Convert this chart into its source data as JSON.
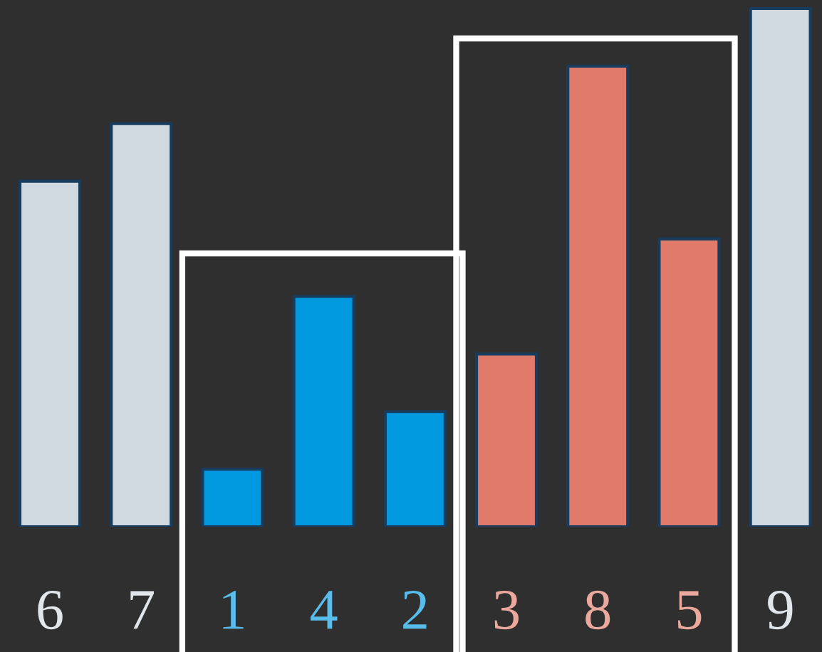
{
  "chart_data": {
    "type": "bar",
    "categories": [
      null,
      null,
      null,
      null,
      null,
      null,
      null,
      null,
      null
    ],
    "values": [
      6,
      7,
      1,
      4,
      2,
      3,
      8,
      5,
      9
    ],
    "colors": [
      "#d0d8e0",
      "#d0d8e0",
      "#0099e0",
      "#0099e0",
      "#0099e0",
      "#e07a6a",
      "#e07a6a",
      "#e07a6a",
      "#d0d8e0"
    ],
    "data_labels": true,
    "grid": false,
    "legend": false
  }
}
